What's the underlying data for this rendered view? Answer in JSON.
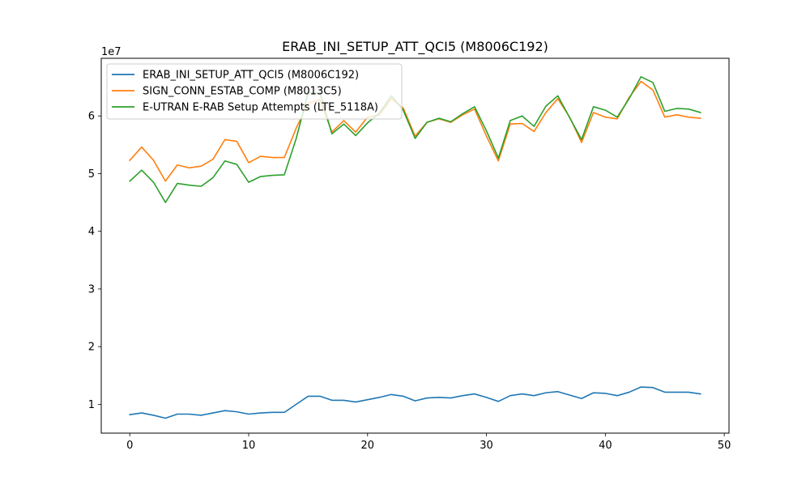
{
  "chart_data": {
    "type": "line",
    "title": "ERAB_INI_SETUP_ATT_QCI5 (M8006C192)",
    "xlabel": "",
    "ylabel": "",
    "y_scale_label": "1e7",
    "xlim": [
      -2.4,
      50.4
    ],
    "ylim": [
      0.5,
      7.0
    ],
    "x_ticks": [
      0,
      10,
      20,
      30,
      40,
      50
    ],
    "y_ticks": [
      1,
      2,
      3,
      4,
      5,
      6
    ],
    "x_tick_labels": [
      "0",
      "10",
      "20",
      "30",
      "40",
      "50"
    ],
    "y_tick_labels": [
      "1",
      "2",
      "3",
      "4",
      "5",
      "6"
    ],
    "legend_position": "top-left",
    "x": [
      0,
      1,
      2,
      3,
      4,
      5,
      6,
      7,
      8,
      9,
      10,
      11,
      12,
      13,
      14,
      15,
      16,
      17,
      18,
      19,
      20,
      21,
      22,
      23,
      24,
      25,
      26,
      27,
      28,
      29,
      30,
      31,
      32,
      33,
      34,
      35,
      36,
      37,
      38,
      39,
      40,
      41,
      42,
      43,
      44,
      45,
      46,
      47,
      48
    ],
    "series": [
      {
        "name": "ERAB_INI_SETUP_ATT_QCI5 (M8006C192)",
        "color": "#1f77b4",
        "values": [
          0.82,
          0.85,
          0.81,
          0.76,
          0.83,
          0.83,
          0.81,
          0.85,
          0.89,
          0.87,
          0.83,
          0.85,
          0.86,
          0.86,
          1.0,
          1.14,
          1.14,
          1.07,
          1.07,
          1.04,
          1.08,
          1.12,
          1.17,
          1.14,
          1.06,
          1.11,
          1.12,
          1.11,
          1.15,
          1.18,
          1.12,
          1.05,
          1.15,
          1.18,
          1.15,
          1.2,
          1.22,
          1.16,
          1.1,
          1.2,
          1.19,
          1.15,
          1.21,
          1.3,
          1.29,
          1.21,
          1.21,
          1.21,
          1.18
        ]
      },
      {
        "name": "SIGN_CONN_ESTAB_COMP (M8013C5)",
        "color": "#ff7f0e",
        "values": [
          5.23,
          5.46,
          5.23,
          4.87,
          5.15,
          5.1,
          5.13,
          5.25,
          5.59,
          5.56,
          5.19,
          5.3,
          5.28,
          5.28,
          5.79,
          6.22,
          6.28,
          5.72,
          5.92,
          5.72,
          5.98,
          6.02,
          6.3,
          6.14,
          5.65,
          5.89,
          5.95,
          5.89,
          6.02,
          6.12,
          5.65,
          5.22,
          5.86,
          5.87,
          5.73,
          6.06,
          6.3,
          5.98,
          5.54,
          6.06,
          5.98,
          5.95,
          6.32,
          6.6,
          6.45,
          5.98,
          6.02,
          5.98,
          5.96
        ]
      },
      {
        "name": "E-UTRAN E-RAB Setup Attempts (LTE_5118A)",
        "color": "#2ca02c",
        "values": [
          4.87,
          5.06,
          4.85,
          4.5,
          4.83,
          4.8,
          4.78,
          4.93,
          5.22,
          5.16,
          4.85,
          4.95,
          4.97,
          4.98,
          5.61,
          6.4,
          6.4,
          5.69,
          5.86,
          5.66,
          5.88,
          6.05,
          6.35,
          6.1,
          5.61,
          5.89,
          5.96,
          5.9,
          6.04,
          6.16,
          5.74,
          5.27,
          5.92,
          6.0,
          5.82,
          6.17,
          6.35,
          5.97,
          5.59,
          6.16,
          6.1,
          5.98,
          6.3,
          6.68,
          6.58,
          6.08,
          6.13,
          6.12,
          6.06
        ]
      }
    ]
  }
}
